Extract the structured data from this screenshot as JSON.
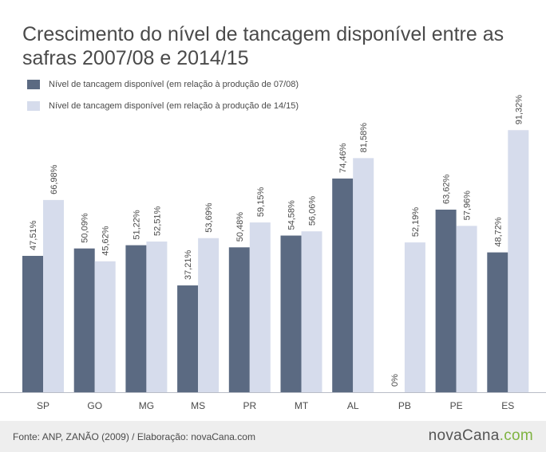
{
  "chart_data": {
    "type": "bar",
    "title": "Crescimento do nível de tancagem disponível entre as safras 2007/08 e 2014/15",
    "xlabel": "",
    "ylabel": "",
    "ylim": [
      0,
      100
    ],
    "grid": false,
    "legend_position": "top-left",
    "categories": [
      "SP",
      "GO",
      "MG",
      "MS",
      "PR",
      "MT",
      "AL",
      "PB",
      "PE",
      "ES"
    ],
    "series": [
      {
        "name": "Nível de tancagem disponível (em relação à produção de 07/08)",
        "color": "#5b6a82",
        "values": [
          47.51,
          50.09,
          51.22,
          37.21,
          50.48,
          54.58,
          74.46,
          0,
          63.62,
          48.72
        ],
        "labels": [
          "47,51%",
          "50,09%",
          "51,22%",
          "37,21%",
          "50,48%",
          "54,58%",
          "74,46%",
          "0%",
          "63,62%",
          "48,72%"
        ]
      },
      {
        "name": "Nível de tancagem disponível (em relação à produção de 14/15)",
        "color": "#d6dcec",
        "values": [
          66.98,
          45.62,
          52.51,
          53.69,
          59.15,
          56.06,
          81.58,
          52.19,
          57.96,
          91.32
        ],
        "labels": [
          "66,98%",
          "45,62%",
          "52,51%",
          "53,69%",
          "59,15%",
          "56,06%",
          "81,58%",
          "52,19%",
          "57,96%",
          "91,32%"
        ]
      }
    ]
  },
  "footer": {
    "source": "Fonte: ANP, ZANÃO (2009)  /  Elaboração: novaCana.com",
    "logo_main": "novaCana",
    "logo_accent": ".com"
  }
}
